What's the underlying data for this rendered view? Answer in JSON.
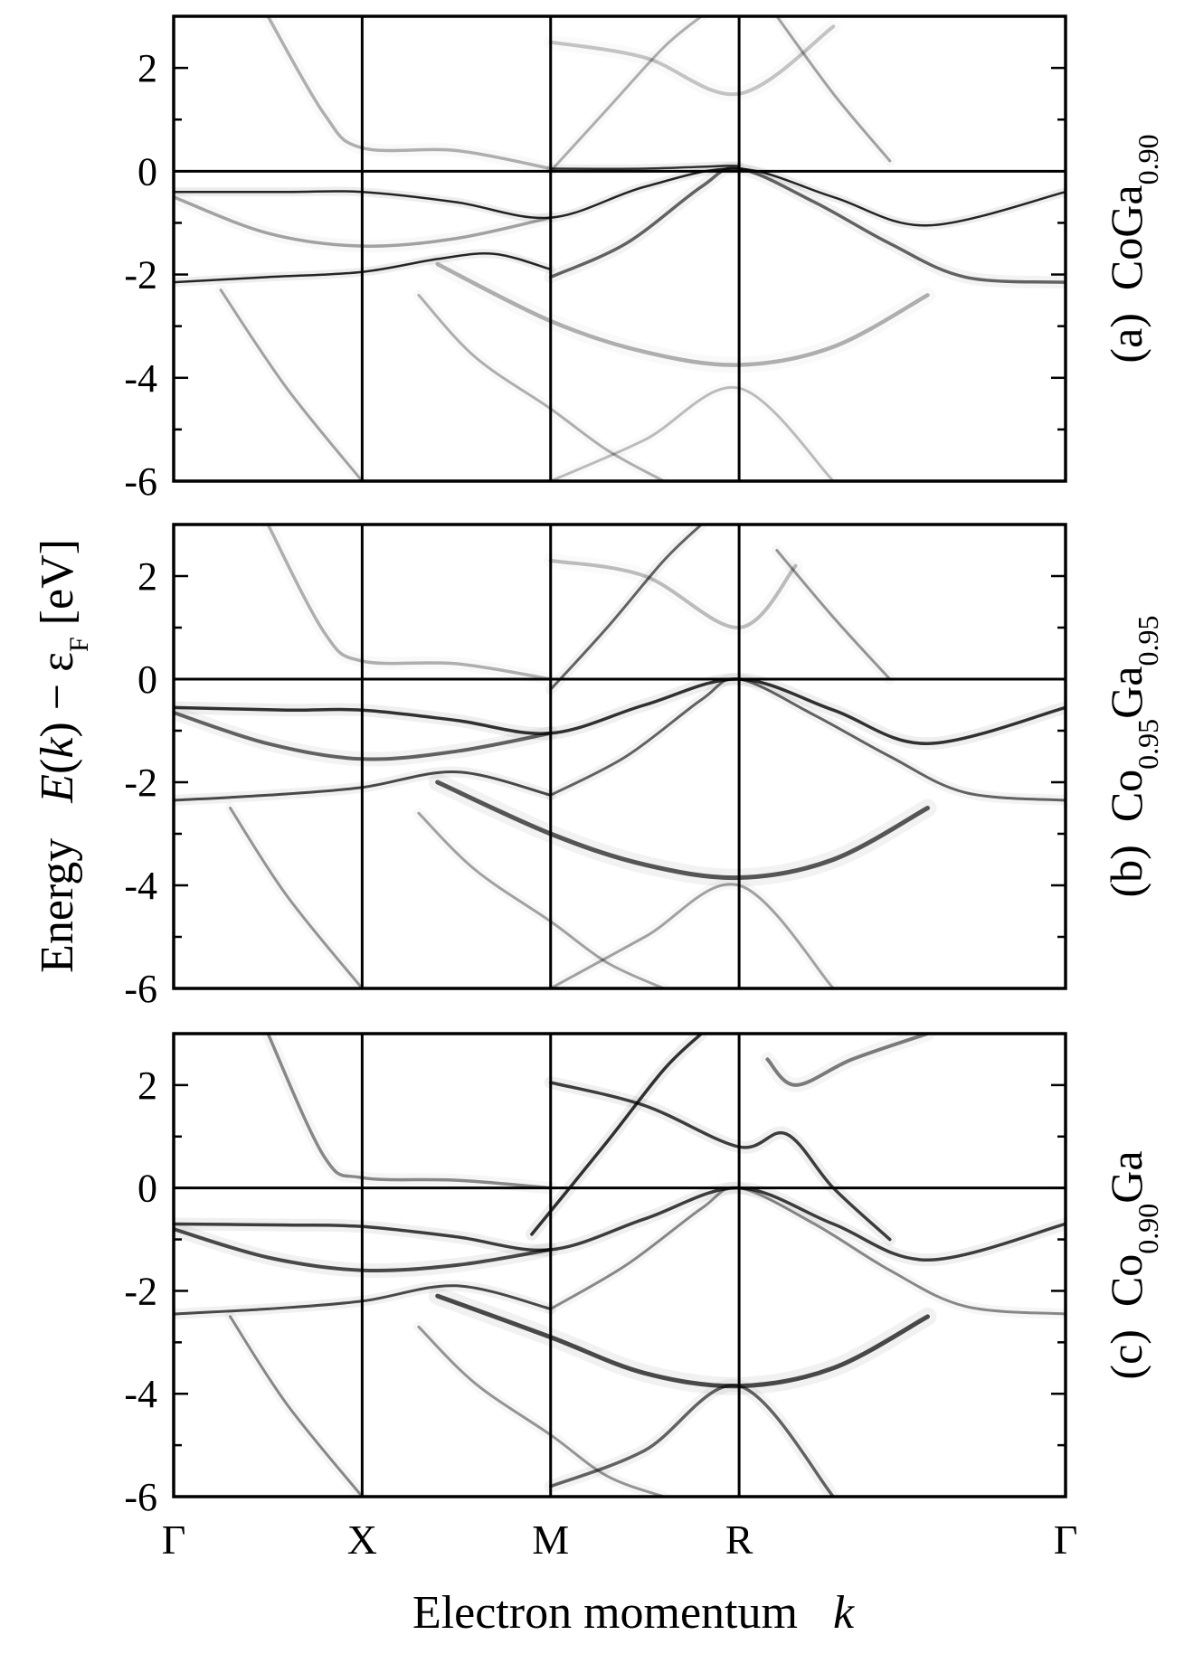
{
  "chart_data": {
    "type": "line",
    "xlabel_main": "Electron momentum",
    "xlabel_var": "k",
    "ylabel": {
      "prefix": "Energy",
      "func": "E",
      "arg": "k",
      "minus": "−",
      "eps": "ε",
      "eps_sub": "F",
      "unit": "[eV]"
    },
    "kpoints": [
      "Γ",
      "X",
      "M",
      "R",
      "Γ"
    ],
    "kpoint_positions": [
      0,
      1,
      2,
      3,
      4.732
    ],
    "ylim": [
      -6,
      3
    ],
    "yticks": [
      2,
      0,
      -2,
      -4,
      -6
    ],
    "yticklabels": [
      "2",
      "0",
      "-2",
      "-4",
      "-6"
    ],
    "panels": [
      {
        "tag": "(a)",
        "material": {
          "parts": [
            {
              "t": "CoGa",
              "sub": "0.90"
            }
          ]
        },
        "series": [
          {
            "w": 2.5,
            "o": 0.85,
            "x": [
              0,
              0.6,
              1,
              1.5,
              2,
              2.5,
              3,
              3.5,
              4,
              4.732
            ],
            "y": [
              -0.4,
              -0.4,
              -0.4,
              -0.6,
              -0.9,
              -0.3,
              0.05,
              -0.5,
              -1.05,
              -0.4
            ]
          },
          {
            "w": 3.5,
            "o": 0.35,
            "x": [
              0,
              0.5,
              1,
              1.5,
              2
            ],
            "y": [
              -0.5,
              -1.2,
              -1.45,
              -1.3,
              -0.9
            ]
          },
          {
            "w": 2.5,
            "o": 0.85,
            "x": [
              0,
              0.5,
              1,
              1.4,
              1.7,
              2
            ],
            "y": [
              -2.15,
              -2.05,
              -1.95,
              -1.7,
              -1.6,
              -1.9
            ]
          },
          {
            "w": 3.5,
            "o": 0.3,
            "x": [
              0.5,
              0.8,
              1,
              1.5,
              2
            ],
            "y": [
              3,
              1.1,
              0.45,
              0.4,
              0.05
            ]
          },
          {
            "w": 2.5,
            "o": 0.8,
            "x": [
              2,
              2.5,
              2.9,
              3
            ],
            "y": [
              0.05,
              0.05,
              0.1,
              0.1
            ]
          },
          {
            "w": 3.5,
            "o": 0.6,
            "x": [
              2,
              2.4,
              2.8,
              3,
              3.4,
              3.8,
              4.2,
              4.732
            ],
            "y": [
              -2.05,
              -1.4,
              -0.3,
              0.05,
              -0.6,
              -1.4,
              -2.05,
              -2.15
            ]
          },
          {
            "w": 4.5,
            "o": 0.3,
            "x": [
              1.4,
              2,
              2.5,
              3,
              3.5,
              4
            ],
            "y": [
              -1.8,
              -2.9,
              -3.5,
              -3.75,
              -3.4,
              -2.4
            ]
          },
          {
            "w": 3,
            "o": 0.3,
            "x": [
              2,
              2.3,
              2.6,
              2.8
            ],
            "y": [
              0,
              1.2,
              2.4,
              3
            ]
          },
          {
            "w": 3,
            "o": 0.35,
            "x": [
              3.2,
              3.5,
              3.8
            ],
            "y": [
              3,
              1.5,
              0.2
            ]
          },
          {
            "w": 4,
            "o": 0.22,
            "x": [
              2,
              2.5,
              3,
              3.5
            ],
            "y": [
              2.5,
              2.2,
              1.5,
              2.8
            ]
          },
          {
            "w": 3,
            "o": 0.35,
            "x": [
              0.25,
              0.6,
              1
            ],
            "y": [
              -2.3,
              -4.2,
              -6
            ]
          },
          {
            "w": 3,
            "o": 0.3,
            "x": [
              1.3,
              1.6,
              2,
              2.3,
              2.6
            ],
            "y": [
              -2.4,
              -3.6,
              -4.6,
              -5.4,
              -6
            ]
          },
          {
            "w": 3,
            "o": 0.25,
            "x": [
              2,
              2.5,
              3,
              3.5
            ],
            "y": [
              -6,
              -5.2,
              -4.2,
              -6
            ]
          }
        ]
      },
      {
        "tag": "(b)",
        "material": {
          "parts": [
            {
              "t": "Co",
              "sub": "0.95"
            },
            {
              "t": "Ga",
              "sub": "0.95"
            }
          ]
        },
        "series": [
          {
            "w": 3.5,
            "o": 0.8,
            "x": [
              0,
              0.6,
              1,
              1.5,
              2,
              2.5,
              3,
              3.5,
              4,
              4.732
            ],
            "y": [
              -0.55,
              -0.6,
              -0.6,
              -0.8,
              -1.05,
              -0.5,
              0,
              -0.6,
              -1.25,
              -0.55
            ]
          },
          {
            "w": 4,
            "o": 0.6,
            "x": [
              0,
              0.5,
              1,
              1.5,
              2
            ],
            "y": [
              -0.65,
              -1.25,
              -1.55,
              -1.4,
              -1.05
            ]
          },
          {
            "w": 3,
            "o": 0.7,
            "x": [
              0,
              0.5,
              1,
              1.5,
              2
            ],
            "y": [
              -2.35,
              -2.25,
              -2.1,
              -1.8,
              -2.25
            ]
          },
          {
            "w": 3.5,
            "o": 0.3,
            "x": [
              0.5,
              0.8,
              1,
              1.5,
              2
            ],
            "y": [
              3,
              0.9,
              0.35,
              0.3,
              0
            ]
          },
          {
            "w": 3,
            "o": 0.6,
            "x": [
              2,
              2.4,
              2.8,
              3,
              3.4,
              3.8,
              4.2,
              4.732
            ],
            "y": [
              -2.25,
              -1.5,
              -0.4,
              0,
              -0.7,
              -1.5,
              -2.2,
              -2.35
            ]
          },
          {
            "w": 5,
            "o": 0.65,
            "x": [
              1.4,
              2,
              2.5,
              3,
              3.5,
              4
            ],
            "y": [
              -2,
              -3,
              -3.6,
              -3.85,
              -3.5,
              -2.5
            ]
          },
          {
            "w": 3,
            "o": 0.6,
            "x": [
              2,
              2.3,
              2.6,
              2.8
            ],
            "y": [
              -0.2,
              1.0,
              2.3,
              3
            ]
          },
          {
            "w": 3,
            "o": 0.4,
            "x": [
              3.2,
              3.5,
              3.8
            ],
            "y": [
              2.5,
              1.2,
              0
            ]
          },
          {
            "w": 4,
            "o": 0.25,
            "x": [
              2,
              2.5,
              3,
              3.3
            ],
            "y": [
              2.3,
              2.0,
              1.0,
              2.2
            ]
          },
          {
            "w": 3,
            "o": 0.4,
            "x": [
              0.3,
              0.6,
              1
            ],
            "y": [
              -2.5,
              -4.2,
              -6
            ]
          },
          {
            "w": 3,
            "o": 0.35,
            "x": [
              1.3,
              1.6,
              2,
              2.3,
              2.6
            ],
            "y": [
              -2.6,
              -3.7,
              -4.7,
              -5.5,
              -6
            ]
          },
          {
            "w": 3,
            "o": 0.35,
            "x": [
              2,
              2.5,
              3,
              3.5
            ],
            "y": [
              -6,
              -5.0,
              -4.0,
              -6
            ]
          }
        ]
      },
      {
        "tag": "(c)",
        "material": {
          "parts": [
            {
              "t": "Co",
              "sub": "0.90"
            },
            {
              "t": "Ga",
              "sub": ""
            }
          ]
        },
        "series": [
          {
            "w": 3.5,
            "o": 0.75,
            "x": [
              0,
              0.6,
              1,
              1.5,
              2,
              2.5,
              3,
              3.5,
              4,
              4.732
            ],
            "y": [
              -0.7,
              -0.72,
              -0.75,
              -0.95,
              -1.2,
              -0.6,
              0,
              -0.7,
              -1.4,
              -0.7
            ]
          },
          {
            "w": 4,
            "o": 0.7,
            "x": [
              0,
              0.5,
              1,
              1.5,
              2
            ],
            "y": [
              -0.8,
              -1.35,
              -1.6,
              -1.5,
              -1.2
            ]
          },
          {
            "w": 3,
            "o": 0.7,
            "x": [
              0,
              0.5,
              1,
              1.5,
              2
            ],
            "y": [
              -2.45,
              -2.35,
              -2.2,
              -1.9,
              -2.35
            ]
          },
          {
            "w": 3.5,
            "o": 0.45,
            "x": [
              0.5,
              0.8,
              1,
              1.5,
              2
            ],
            "y": [
              3,
              0.6,
              0.2,
              0.15,
              0
            ]
          },
          {
            "w": 3,
            "o": 0.45,
            "x": [
              2,
              2.4,
              2.8,
              3,
              3.4,
              3.8,
              4.2,
              4.732
            ],
            "y": [
              -2.35,
              -1.5,
              -0.4,
              0,
              -0.7,
              -1.6,
              -2.3,
              -2.45
            ]
          },
          {
            "w": 5,
            "o": 0.7,
            "x": [
              1.4,
              2,
              2.5,
              3,
              3.5,
              4
            ],
            "y": [
              -2.1,
              -2.9,
              -3.6,
              -3.85,
              -3.5,
              -2.5
            ]
          },
          {
            "w": 3.5,
            "o": 0.8,
            "x": [
              1.9,
              2.3,
              2.6,
              2.8
            ],
            "y": [
              -0.9,
              0.9,
              2.3,
              3
            ]
          },
          {
            "w": 3.5,
            "o": 0.75,
            "x": [
              2,
              2.5,
              3,
              3.25,
              3.5,
              3.8
            ],
            "y": [
              2.05,
              1.6,
              0.8,
              1.05,
              0,
              -1.0
            ]
          },
          {
            "w": 4,
            "o": 0.5,
            "x": [
              3.15,
              3.3,
              3.6,
              4.0
            ],
            "y": [
              2.5,
              2.0,
              2.5,
              3
            ]
          },
          {
            "w": 3,
            "o": 0.45,
            "x": [
              0.3,
              0.6,
              1
            ],
            "y": [
              -2.5,
              -4.2,
              -6
            ]
          },
          {
            "w": 3,
            "o": 0.4,
            "x": [
              1.3,
              1.6,
              2,
              2.3,
              2.6
            ],
            "y": [
              -2.7,
              -3.8,
              -4.8,
              -5.6,
              -6
            ]
          },
          {
            "w": 3.5,
            "o": 0.6,
            "x": [
              2,
              2.5,
              3,
              3.5
            ],
            "y": [
              -5.8,
              -5.1,
              -3.85,
              -6
            ]
          }
        ]
      }
    ]
  }
}
